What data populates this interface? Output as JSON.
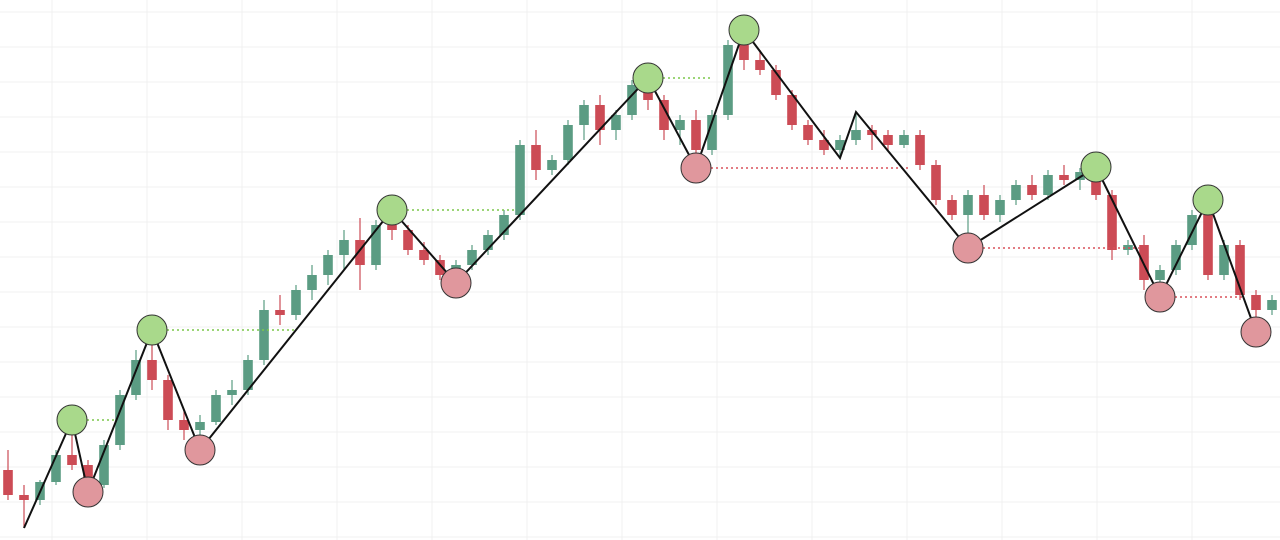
{
  "chart_data": {
    "type": "candlestick",
    "ylim": [
      0,
      540
    ],
    "xlim": [
      -0.5,
      79.5
    ],
    "up_color": "#5b9c83",
    "down_color": "#cc4b55",
    "open": [
      70,
      45,
      40,
      58,
      85,
      75,
      55,
      95,
      145,
      180,
      160,
      120,
      110,
      118,
      145,
      150,
      180,
      230,
      225,
      250,
      265,
      285,
      300,
      275,
      315,
      310,
      290,
      280,
      265,
      275,
      290,
      305,
      325,
      395,
      370,
      380,
      415,
      435,
      410,
      425,
      455,
      440,
      410,
      420,
      390,
      425,
      495,
      480,
      470,
      445,
      415,
      400,
      390,
      400,
      410,
      405,
      395,
      405,
      375,
      340,
      325,
      345,
      325,
      340,
      355,
      345,
      365,
      360,
      368,
      345,
      290,
      295,
      260,
      270,
      295,
      325,
      265,
      295,
      245,
      230
    ],
    "high": [
      90,
      55,
      60,
      90,
      120,
      80,
      100,
      150,
      190,
      210,
      165,
      130,
      125,
      150,
      160,
      185,
      240,
      245,
      255,
      275,
      290,
      310,
      322,
      320,
      330,
      315,
      298,
      285,
      280,
      295,
      310,
      330,
      400,
      410,
      385,
      420,
      440,
      445,
      430,
      460,
      462,
      445,
      425,
      430,
      430,
      500,
      510,
      490,
      475,
      450,
      420,
      410,
      405,
      428,
      415,
      410,
      410,
      410,
      380,
      345,
      350,
      355,
      345,
      360,
      365,
      370,
      375,
      372,
      373,
      350,
      300,
      305,
      275,
      300,
      330,
      340,
      300,
      300,
      250,
      245
    ],
    "low": [
      40,
      12,
      35,
      55,
      70,
      48,
      52,
      90,
      140,
      150,
      110,
      100,
      90,
      115,
      135,
      145,
      175,
      215,
      220,
      240,
      255,
      270,
      250,
      270,
      300,
      285,
      275,
      260,
      257,
      270,
      285,
      300,
      320,
      360,
      365,
      375,
      400,
      395,
      400,
      420,
      430,
      400,
      395,
      372,
      385,
      420,
      470,
      465,
      440,
      410,
      395,
      385,
      382,
      395,
      390,
      390,
      392,
      370,
      335,
      320,
      292,
      320,
      318,
      335,
      340,
      340,
      355,
      350,
      340,
      280,
      285,
      250,
      243,
      265,
      290,
      260,
      260,
      240,
      208,
      225
    ],
    "close": [
      45,
      40,
      58,
      85,
      75,
      55,
      95,
      145,
      180,
      160,
      120,
      110,
      118,
      145,
      150,
      180,
      230,
      225,
      250,
      265,
      285,
      300,
      275,
      315,
      310,
      290,
      280,
      265,
      275,
      290,
      305,
      325,
      395,
      370,
      380,
      415,
      435,
      410,
      425,
      455,
      440,
      410,
      420,
      390,
      425,
      495,
      480,
      470,
      445,
      415,
      400,
      390,
      400,
      410,
      405,
      395,
      405,
      375,
      340,
      325,
      345,
      325,
      340,
      355,
      345,
      365,
      360,
      368,
      345,
      290,
      295,
      260,
      270,
      295,
      325,
      265,
      295,
      245,
      230,
      240
    ],
    "zigzag": {
      "color": "#111111",
      "points": [
        {
          "x": 1,
          "value": 12,
          "swing": null
        },
        {
          "x": 4,
          "value": 120,
          "swing": "high",
          "level_end": 6.7
        },
        {
          "x": 5,
          "value": 48,
          "swing": "low"
        },
        {
          "x": 9,
          "value": 210,
          "swing": "high",
          "level_end": 18
        },
        {
          "x": 12,
          "value": 90,
          "swing": "low"
        },
        {
          "x": 24,
          "value": 330,
          "swing": "high",
          "level_end": 31.7
        },
        {
          "x": 28,
          "value": 257,
          "swing": "low"
        },
        {
          "x": 40,
          "value": 462,
          "swing": "high",
          "level_end": 44
        },
        {
          "x": 43,
          "value": 372,
          "swing": "low",
          "level_end": 56.4
        },
        {
          "x": 46,
          "value": 510,
          "swing": "high"
        },
        {
          "x": 52,
          "value": 382,
          "swing": null
        },
        {
          "x": 53,
          "value": 428,
          "swing": null
        },
        {
          "x": 60,
          "value": 292,
          "swing": "low",
          "level_end": 70.7
        },
        {
          "x": 68,
          "value": 373,
          "swing": "high"
        },
        {
          "x": 72,
          "value": 243,
          "swing": "low",
          "level_end": 77.3
        },
        {
          "x": 75,
          "value": 340,
          "swing": "high"
        },
        {
          "x": 78,
          "value": 208,
          "swing": "low"
        }
      ]
    },
    "high_circle_color": "#a9d98b",
    "low_circle_color": "#e0979d",
    "high_level_color": "#7cc74a",
    "low_level_color": "#d9505a"
  }
}
